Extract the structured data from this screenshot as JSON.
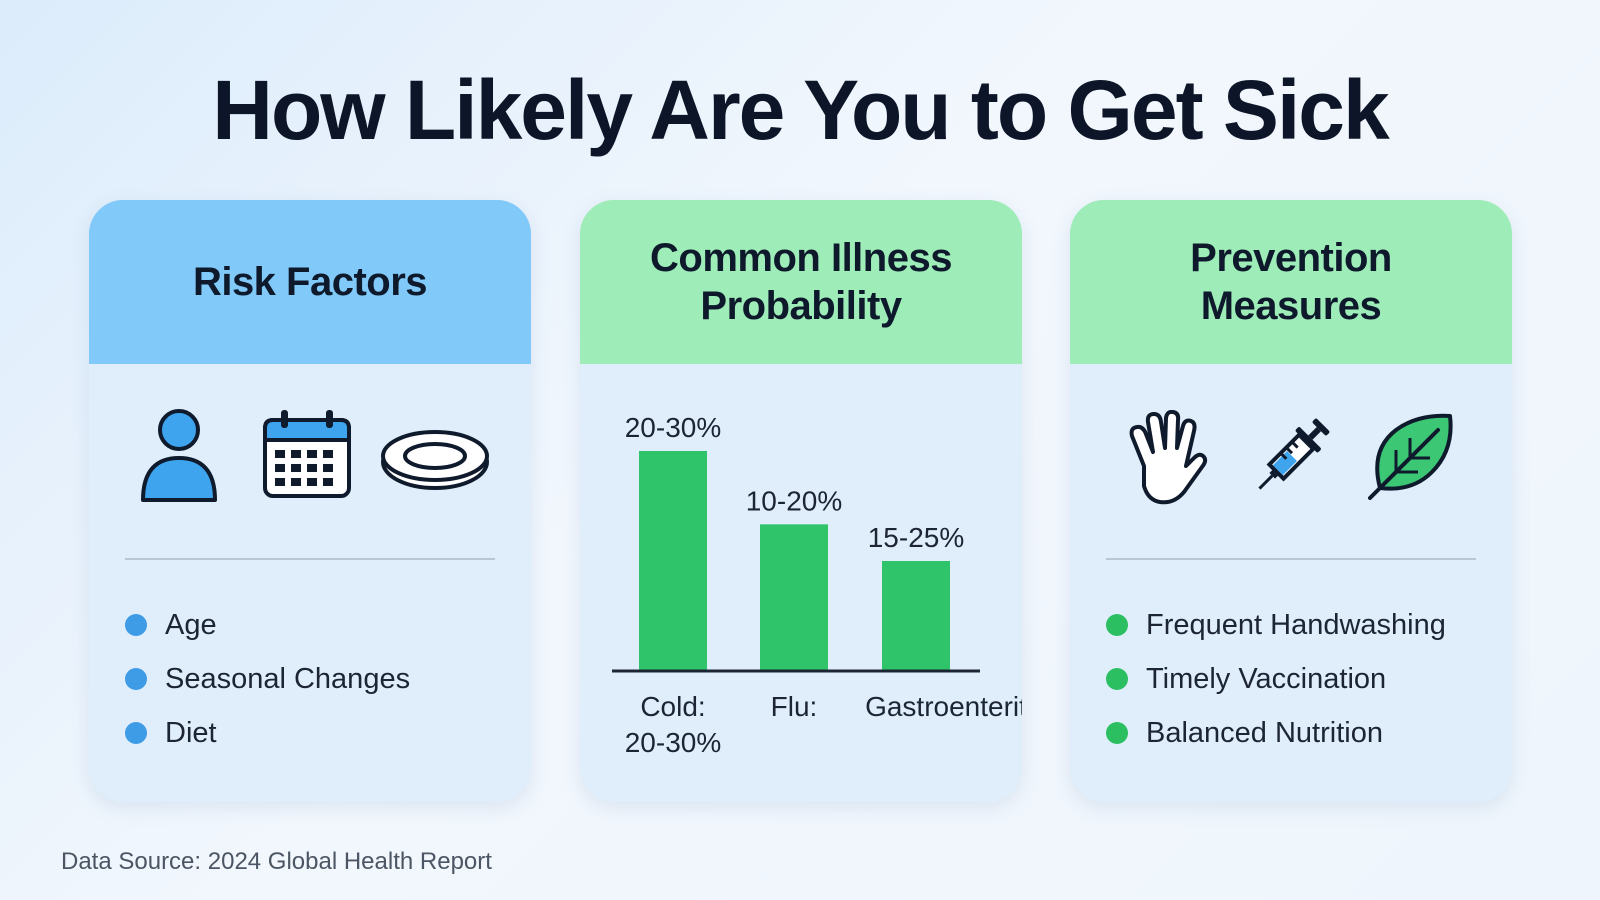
{
  "title": "How Likely Are You to Get Sick",
  "risk_card": {
    "heading": "Risk Factors",
    "icons": [
      "person-icon",
      "calendar-icon",
      "plate-icon"
    ],
    "items": [
      "Age",
      "Seasonal Changes",
      "Diet"
    ],
    "accent": "#3e9be6"
  },
  "illness_card": {
    "heading_line1": "Common Illness",
    "heading_line2": "Probability"
  },
  "prevention_card": {
    "heading_line1": "Prevention",
    "heading_line2": "Measures",
    "icons": [
      "hand-icon",
      "syringe-icon",
      "leaf-icon"
    ],
    "items": [
      "Frequent Handwashing",
      "Timely Vaccination",
      "Balanced Nutrition"
    ],
    "accent": "#2bbf62"
  },
  "chart_data": {
    "type": "bar",
    "categories": [
      "Cold: 20-30%",
      "Flu:",
      "Gastroenteritis:"
    ],
    "category_lines": [
      [
        "Cold:",
        "20-30%"
      ],
      [
        "Flu:"
      ],
      [
        "Gastroenteritis:"
      ]
    ],
    "values": [
      30,
      20,
      15
    ],
    "data_labels": [
      "20-30%",
      "10-20%",
      "15-25%"
    ],
    "title": "",
    "xlabel": "",
    "ylabel": "",
    "ylim": [
      0,
      30
    ],
    "grid": false,
    "bar_color": "#2fc46a"
  },
  "footer": {
    "source": "Data Source: 2024 Global Health Report"
  }
}
